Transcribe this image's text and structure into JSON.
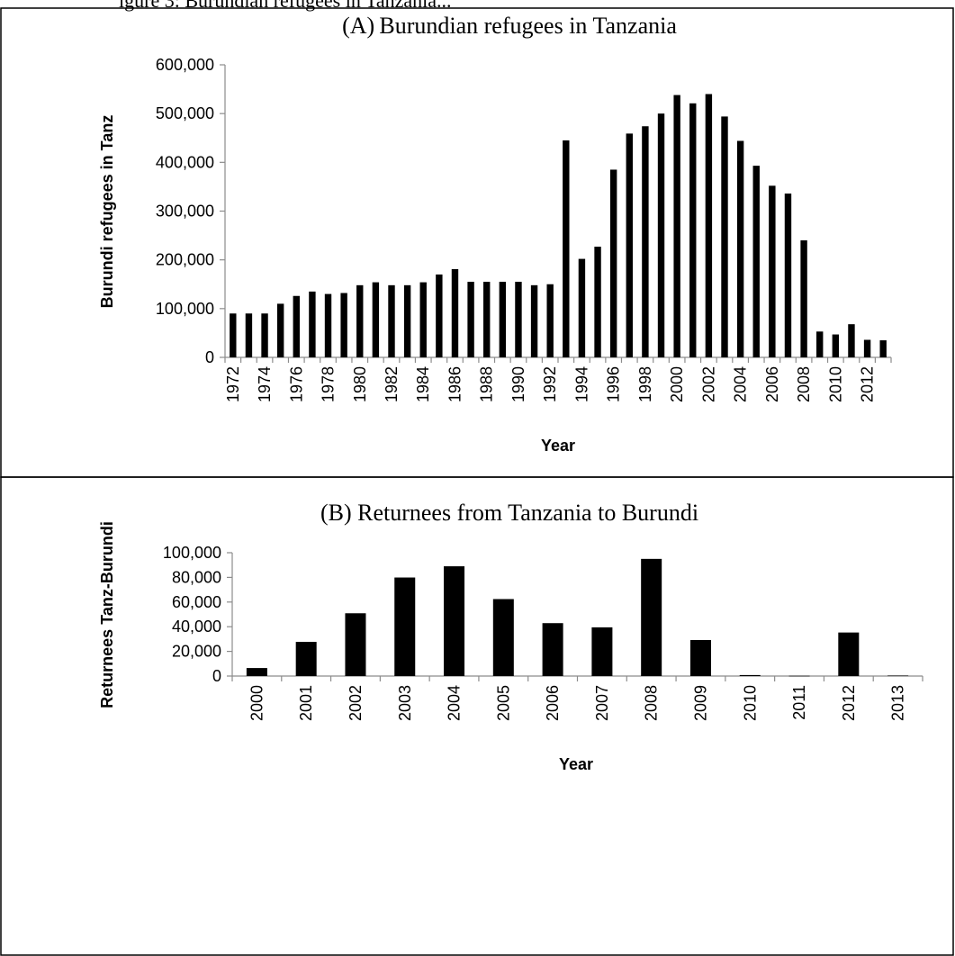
{
  "header_fragment": "igure 3:  Burundian refugees in Tanzania...",
  "chart_data": [
    {
      "type": "bar",
      "title": "(A) Burundian refugees in Tanzania",
      "xlabel": "Year",
      "ylabel": "Burundi refugees in Tanz",
      "ylim": [
        0,
        600000
      ],
      "yticks": [
        "0",
        "100,000",
        "200,000",
        "300,000",
        "400,000",
        "500,000",
        "600,000"
      ],
      "grid": false,
      "legend": "none",
      "bar_color": "#000000",
      "categories": [
        "1972",
        "1973",
        "1974",
        "1975",
        "1976",
        "1977",
        "1978",
        "1979",
        "1980",
        "1981",
        "1982",
        "1983",
        "1984",
        "1985",
        "1986",
        "1987",
        "1988",
        "1989",
        "1990",
        "1991",
        "1992",
        "1993",
        "1994",
        "1995",
        "1996",
        "1997",
        "1998",
        "1999",
        "2000",
        "2001",
        "2002",
        "2003",
        "2004",
        "2005",
        "2006",
        "2007",
        "2008",
        "2009",
        "2010",
        "2011",
        "2012",
        "2013"
      ],
      "tick_labels": [
        "1972",
        "",
        "1974",
        "",
        "1976",
        "",
        "1978",
        "",
        "1980",
        "",
        "1982",
        "",
        "1984",
        "",
        "1986",
        "",
        "1988",
        "",
        "1990",
        "",
        "1992",
        "",
        "1994",
        "",
        "1996",
        "",
        "1998",
        "",
        "2000",
        "",
        "2002",
        "",
        "2004",
        "",
        "2006",
        "",
        "2008",
        "",
        "2010",
        "",
        "2012",
        ""
      ],
      "values": [
        90000,
        90000,
        90000,
        110000,
        126000,
        135000,
        130000,
        132000,
        148000,
        154000,
        148000,
        148000,
        154000,
        170000,
        181000,
        155000,
        155000,
        155000,
        155000,
        148000,
        150000,
        445000,
        202000,
        227000,
        385000,
        459000,
        474000,
        500000,
        538000,
        521000,
        540000,
        494000,
        444000,
        393000,
        352000,
        336000,
        240000,
        53000,
        47000,
        68000,
        36000,
        35000
      ]
    },
    {
      "type": "bar",
      "title": "(B) Returnees from Tanzania to Burundi",
      "xlabel": "Year",
      "ylabel": "Returnees Tanz-Burundi",
      "ylim": [
        0,
        100000
      ],
      "yticks": [
        "0",
        "20,000",
        "40,000",
        "60,000",
        "80,000",
        "100,000"
      ],
      "grid": false,
      "legend": "none",
      "bar_color": "#000000",
      "categories": [
        "2000",
        "2001",
        "2002",
        "2003",
        "2004",
        "2005",
        "2006",
        "2007",
        "2008",
        "2009",
        "2010",
        "2011",
        "2012",
        "2013"
      ],
      "tick_labels": [
        "2000",
        "2001",
        "2002",
        "2003",
        "2004",
        "2005",
        "2006",
        "2007",
        "2008",
        "2009",
        "2010",
        "2011",
        "2012",
        "2013"
      ],
      "values": [
        6500,
        27700,
        50900,
        79900,
        89000,
        62400,
        42900,
        39500,
        95000,
        29200,
        800,
        200,
        35300,
        400
      ]
    }
  ]
}
